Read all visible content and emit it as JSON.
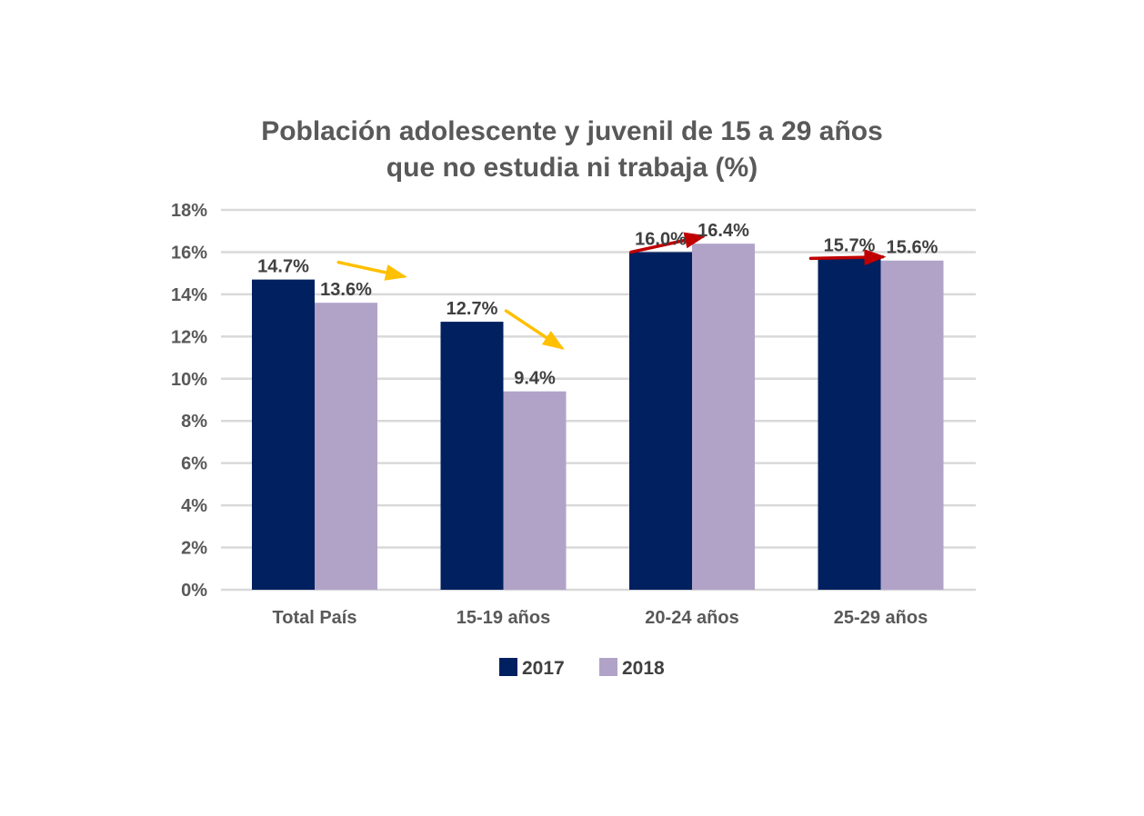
{
  "chart_data": {
    "type": "bar",
    "title": [
      "Población adolescente y juvenil de 15 a 29 años",
      "que no estudia ni trabaja (%)"
    ],
    "categories": [
      "Total País",
      "15-19 años",
      "20-24 años",
      "25-29 años"
    ],
    "series": [
      {
        "name": "2017",
        "color": "#002060",
        "values": [
          14.7,
          12.7,
          16.0,
          15.7
        ],
        "labels": [
          "14.7%",
          "12.7%",
          "16.0%",
          "15.7%"
        ]
      },
      {
        "name": "2018",
        "color": "#B1A3C8",
        "values": [
          13.6,
          9.4,
          16.4,
          15.6
        ],
        "labels": [
          "13.6%",
          "9.4%",
          "16.4%",
          "15.6%"
        ]
      }
    ],
    "ylim": [
      0,
      18
    ],
    "yticks": [
      "0%",
      "2%",
      "4%",
      "6%",
      "8%",
      "10%",
      "12%",
      "14%",
      "16%",
      "18%"
    ],
    "grid": true,
    "legend_position": "bottom",
    "trend_arrows": [
      {
        "category": "Total País",
        "direction": "down",
        "color": "#FFC000"
      },
      {
        "category": "15-19 años",
        "direction": "down",
        "color": "#FFC000"
      },
      {
        "category": "20-24 años",
        "direction": "up",
        "color": "#C00000"
      },
      {
        "category": "25-29 años",
        "direction": "flat",
        "color": "#C00000"
      }
    ]
  }
}
